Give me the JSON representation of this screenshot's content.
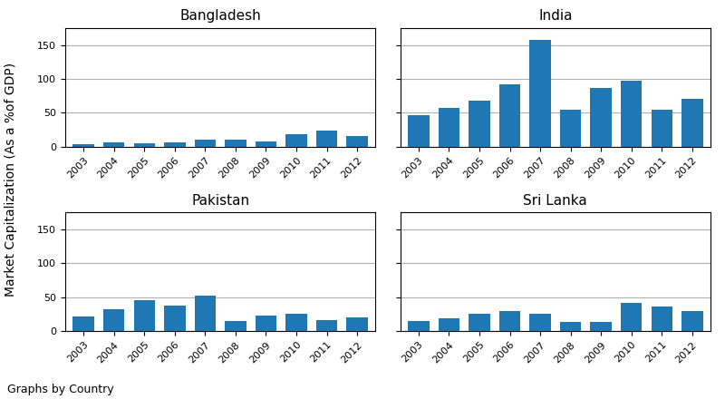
{
  "chart_data": [
    {
      "type": "bar",
      "title": "Bangladesh",
      "categories": [
        "2003",
        "2004",
        "2005",
        "2006",
        "2007",
        "2008",
        "2009",
        "2010",
        "2011",
        "2012"
      ],
      "values": [
        3.5,
        6.5,
        5.5,
        6.5,
        11,
        10,
        8,
        18,
        24,
        16
      ],
      "ylim": [
        0,
        175
      ],
      "yticks": [
        0,
        50,
        100,
        150
      ],
      "grid": true
    },
    {
      "type": "bar",
      "title": "India",
      "categories": [
        "2003",
        "2004",
        "2005",
        "2006",
        "2007",
        "2008",
        "2009",
        "2010",
        "2011",
        "2012"
      ],
      "values": [
        47,
        57,
        68,
        92,
        157,
        55,
        86,
        97,
        55,
        70
      ],
      "ylim": [
        0,
        175
      ],
      "yticks": [
        0,
        50,
        100,
        150
      ],
      "grid": true,
      "tick_labels": "x"
    },
    {
      "type": "bar",
      "title": "Pakistan",
      "categories": [
        "2003",
        "2004",
        "2005",
        "2006",
        "2007",
        "2008",
        "2009",
        "2010",
        "2011",
        "2012"
      ],
      "values": [
        22,
        32,
        45,
        38,
        52,
        15,
        23,
        25,
        16,
        20
      ],
      "ylim": [
        0,
        175
      ],
      "yticks": [
        0,
        50,
        100,
        150
      ],
      "grid": true
    },
    {
      "type": "bar",
      "title": "Sri Lanka",
      "categories": [
        "2003",
        "2004",
        "2005",
        "2006",
        "2007",
        "2008",
        "2009",
        "2010",
        "2011",
        "2012"
      ],
      "values": [
        15,
        19,
        25,
        30,
        25,
        13,
        14,
        42,
        36,
        30
      ],
      "ylim": [
        0,
        175
      ],
      "yticks": [
        0,
        50,
        100,
        150
      ],
      "grid": true,
      "tick_labels": "x"
    }
  ],
  "ylabel": "Market Capitalization (As a %of GDP)",
  "annotations": [
    "Graphs by Country"
  ]
}
